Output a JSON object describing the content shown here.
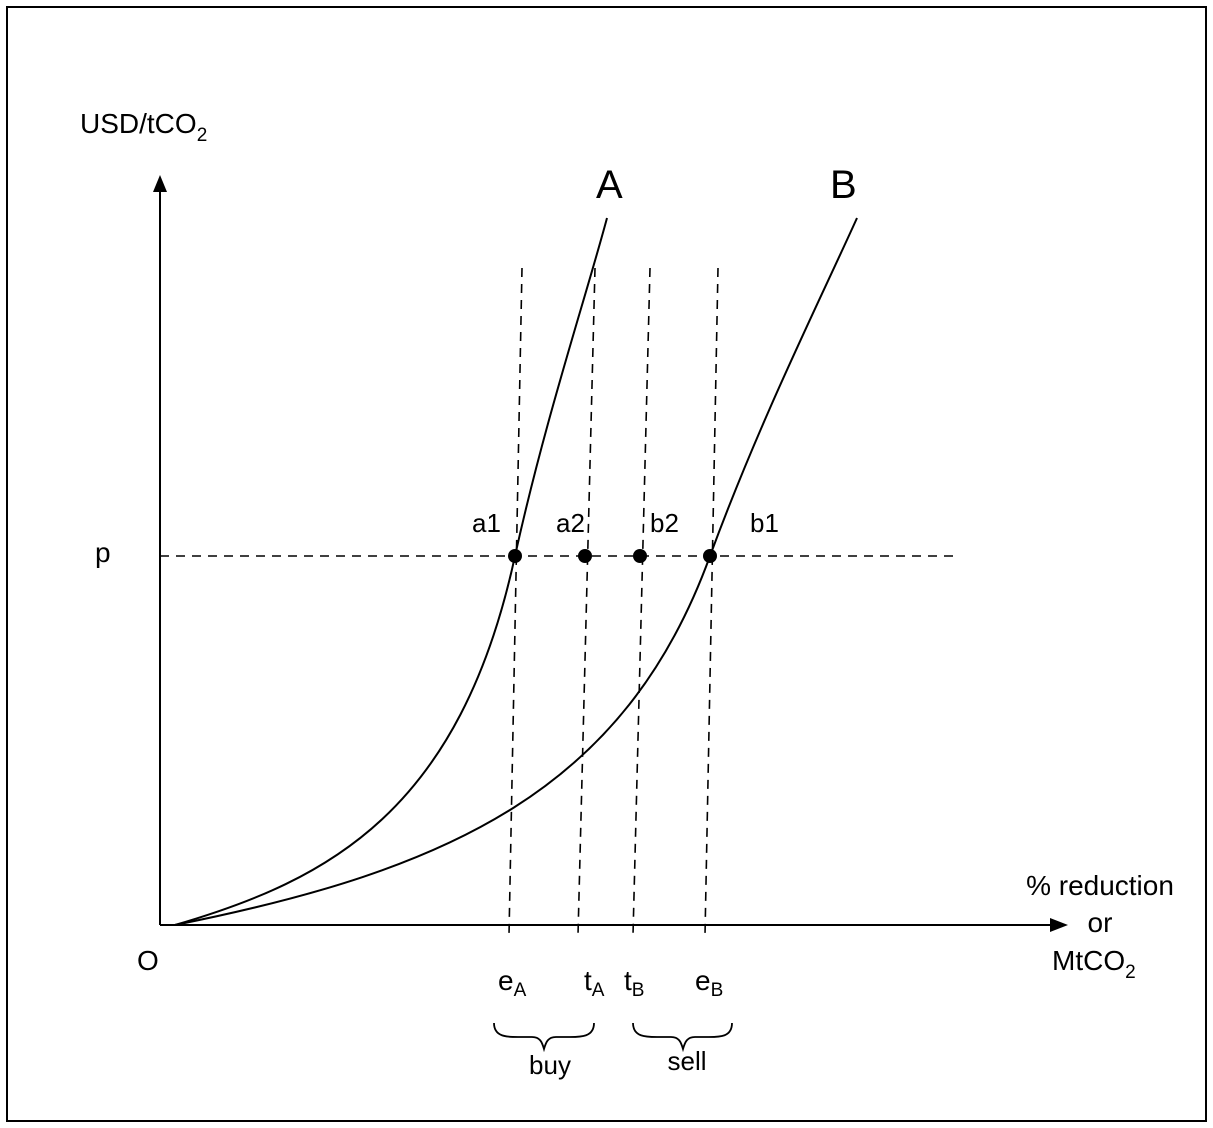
{
  "figure": {
    "y_axis_label": {
      "main": "USD/tCO",
      "subscript": "2"
    },
    "x_axis_label": {
      "line1": "% reduction",
      "line2": "or",
      "line3_main": "MtCO",
      "line3_subscript": "2"
    },
    "origin_label": "O",
    "price_label": "p",
    "curves": [
      {
        "id": "A",
        "label": "A"
      },
      {
        "id": "B",
        "label": "B"
      }
    ],
    "points": [
      {
        "id": "a1",
        "label": "a1"
      },
      {
        "id": "a2",
        "label": "a2"
      },
      {
        "id": "b2",
        "label": "b2"
      },
      {
        "id": "b1",
        "label": "b1"
      }
    ],
    "ticks": [
      {
        "id": "eA",
        "main": "e",
        "subscript": "A"
      },
      {
        "id": "tA",
        "main": "t",
        "subscript": "A"
      },
      {
        "id": "tB",
        "main": "t",
        "subscript": "B"
      },
      {
        "id": "eB",
        "main": "e",
        "subscript": "B"
      }
    ],
    "brackets": [
      {
        "id": "buy",
        "label": "buy"
      },
      {
        "id": "sell",
        "label": "sell"
      }
    ],
    "colors": {
      "ink": "#000000",
      "background": "#ffffff"
    }
  }
}
